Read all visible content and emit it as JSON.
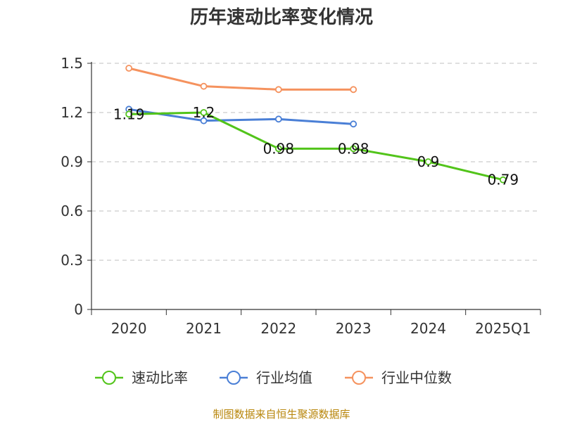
{
  "chart_data": {
    "type": "line",
    "title": "历年速动比率变化情况",
    "categories": [
      "2020",
      "2021",
      "2022",
      "2023",
      "2024",
      "2025Q1"
    ],
    "y_ticks": [
      "0",
      "0.3",
      "0.6",
      "0.9",
      "1.2",
      "1.5"
    ],
    "ylim": [
      0,
      1.5
    ],
    "grid": true,
    "legend_position": "bottom",
    "series": [
      {
        "name": "速动比率",
        "color": "#52c41a",
        "values": [
          1.19,
          1.2,
          0.98,
          0.98,
          0.9,
          0.79
        ],
        "labels": [
          "1.19",
          "1.2",
          "0.98",
          "0.98",
          "0.9",
          "0.79"
        ]
      },
      {
        "name": "行业均值",
        "color": "#4a7fd6",
        "values": [
          1.22,
          1.15,
          1.16,
          1.13,
          null,
          null
        ]
      },
      {
        "name": "行业中位数",
        "color": "#f5925e",
        "values": [
          1.47,
          1.36,
          1.34,
          1.34,
          null,
          null
        ]
      }
    ]
  },
  "footer": {
    "source": "制图数据来自恒生聚源数据库"
  }
}
